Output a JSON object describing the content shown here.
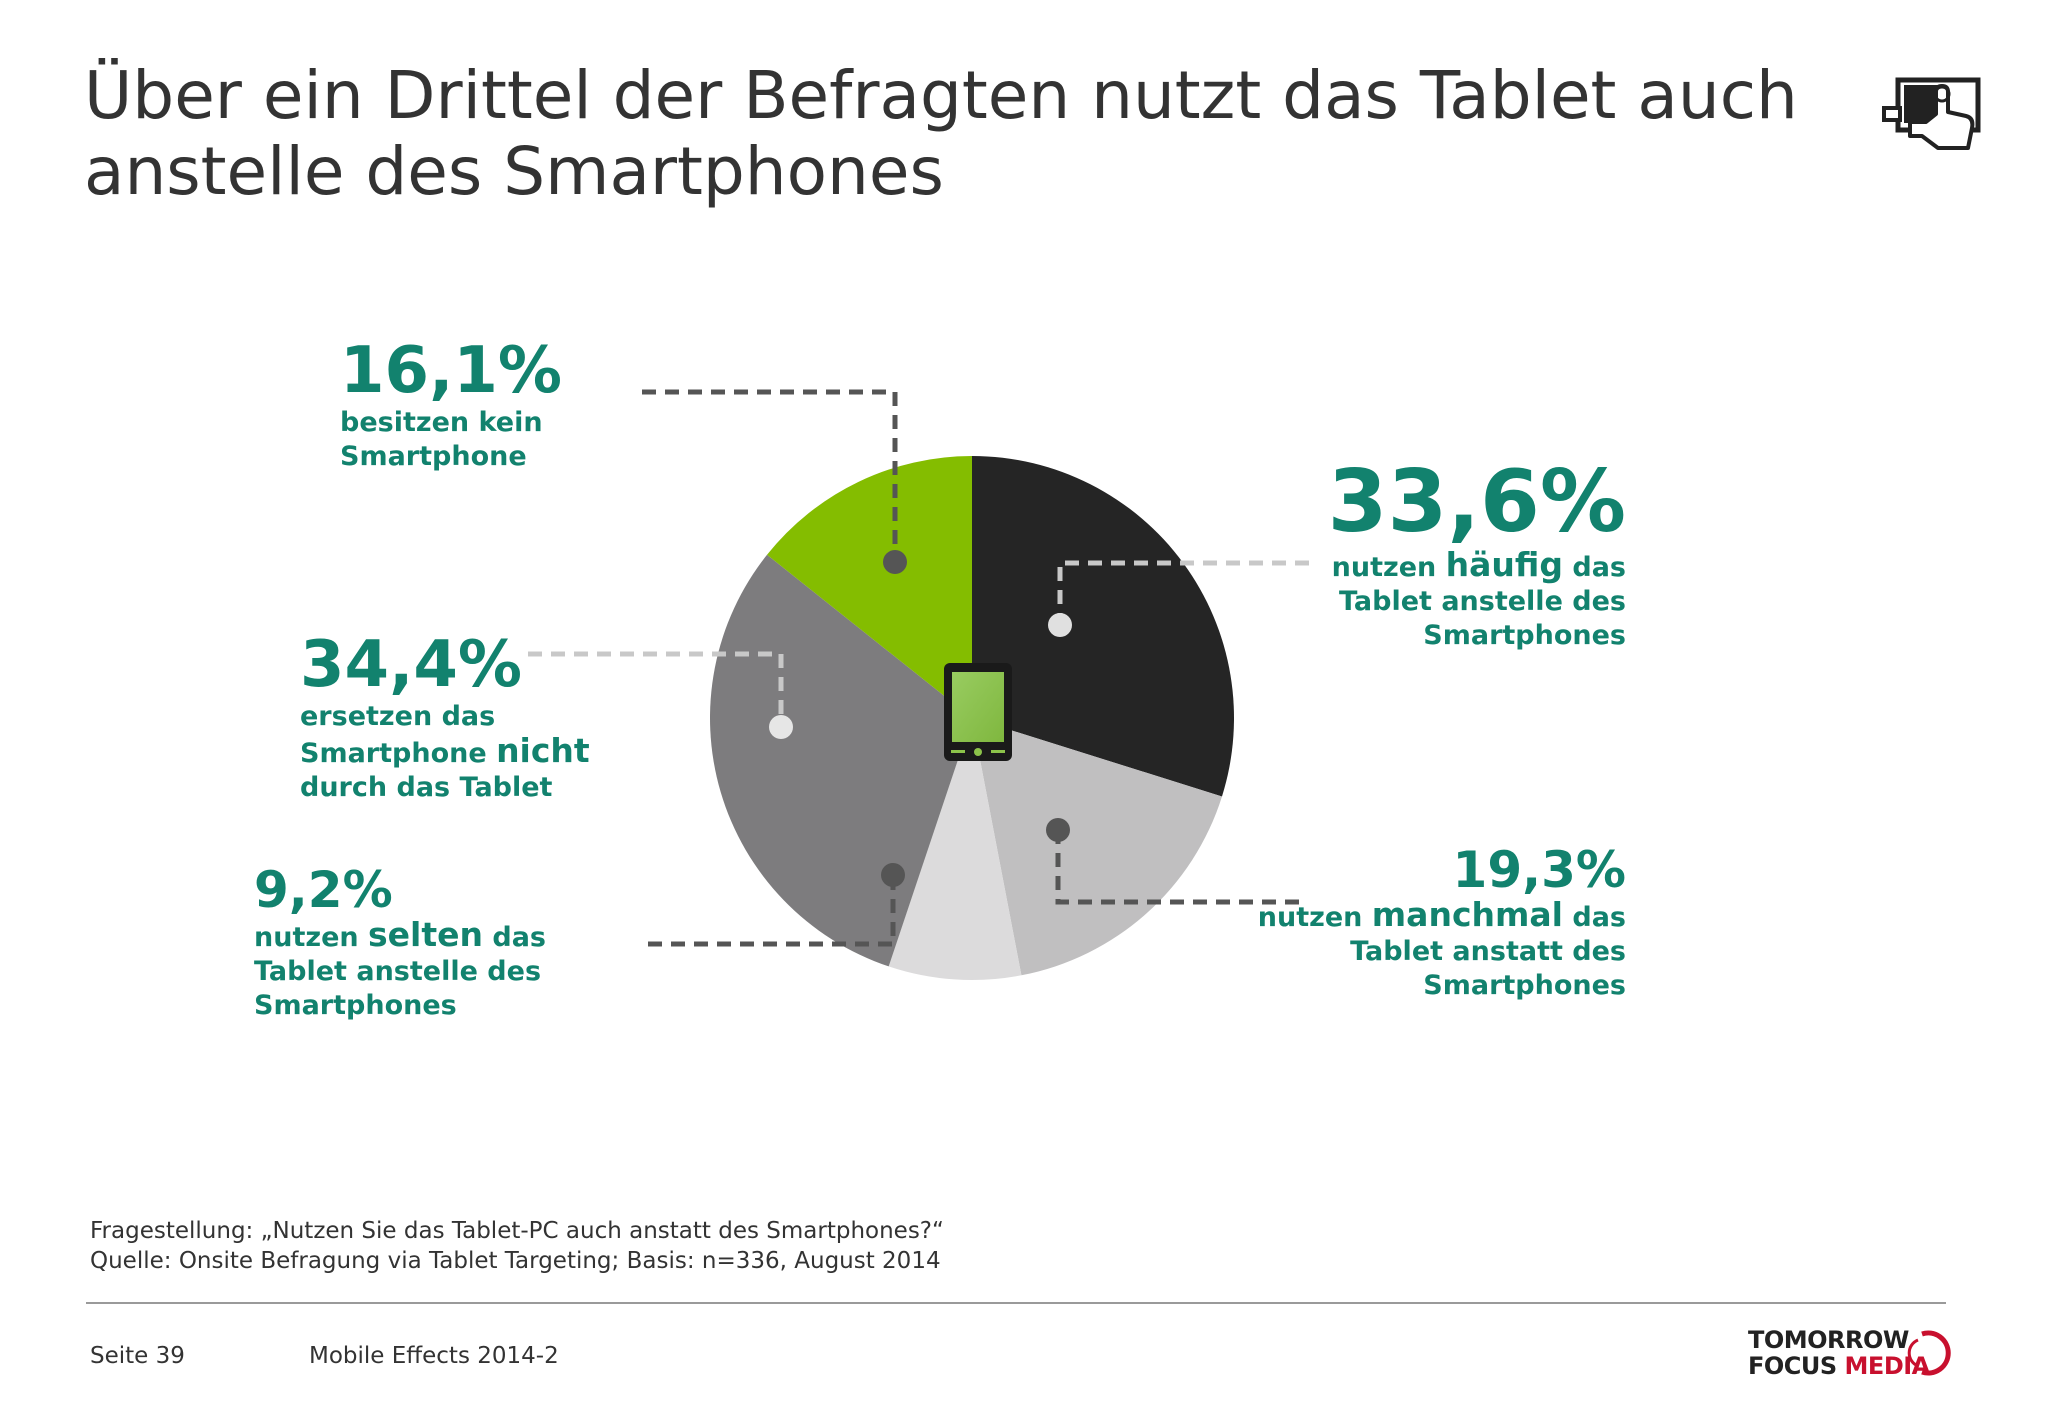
{
  "title": "Über ein Drittel der Befragten nutzt das Tablet auch anstelle des Smartphones",
  "colors": {
    "accent_text": "#12826e",
    "slice_haeufig": "#252525",
    "slice_manchmal": "#c0bfc0",
    "slice_selten": "#dcdbdc",
    "slice_nicht": "#7d7c7e",
    "slice_kein": "#84bd00",
    "leader_dark": "#555555",
    "leader_light": "#c8c8c8"
  },
  "labels": {
    "kein": {
      "pct": "16,1%",
      "line1": "besitzen kein",
      "line2": "Smartphone"
    },
    "haeufig": {
      "pct": "33,6%",
      "pre": "nutzen ",
      "emph": "häufig",
      "post": " das",
      "line2": "Tablet anstelle des",
      "line3": "Smartphones"
    },
    "nicht": {
      "pct": "34,4%",
      "line1": "ersetzen das",
      "pre": "Smartphone ",
      "emph": "nicht",
      "line3": "durch das Tablet"
    },
    "selten": {
      "pct": "9,2%",
      "pre": "nutzen ",
      "emph": "selten",
      "post": " das",
      "line2": "Tablet anstelle des",
      "line3": "Smartphones"
    },
    "manchmal": {
      "pct": "19,3%",
      "pre": "nutzen ",
      "emph": "manchmal",
      "post": " das",
      "line2": "Tablet anstatt des",
      "line3": "Smartphones"
    }
  },
  "chart_data": {
    "type": "pie",
    "title": "Über ein Drittel der Befragten nutzt das Tablet auch anstelle des Smartphones",
    "slices": [
      {
        "label": "nutzen häufig das Tablet anstelle des Smartphones",
        "value": 33.6,
        "color": "#252525"
      },
      {
        "label": "nutzen manchmal das Tablet anstatt des Smartphones",
        "value": 19.3,
        "color": "#c0bfc0"
      },
      {
        "label": "nutzen selten das Tablet anstelle des Smartphones",
        "value": 9.2,
        "color": "#dcdbdc"
      },
      {
        "label": "ersetzen das Smartphone nicht durch das Tablet",
        "value": 34.4,
        "color": "#7d7c7e"
      },
      {
        "label": "besitzen kein Smartphone",
        "value": 16.1,
        "color": "#84bd00"
      }
    ],
    "start": "top (12 o'clock)",
    "direction": "clockwise",
    "center_icon": "tablet-icon"
  },
  "footer": {
    "question": "Fragestellung: „Nutzen Sie das Tablet-PC auch anstatt des Smartphones?“",
    "source": "Quelle: Onsite Befragung via Tablet Targeting; Basis: n=336, August 2014",
    "page": "Seite 39",
    "document": "Mobile Effects 2014-2"
  },
  "logo": {
    "line1": "TOMORROW",
    "line2a": "FOCUS",
    "line2b": "MEDIA"
  },
  "icons": {
    "top_right": "tablet-touch-hand-icon",
    "center": "tablet-icon"
  }
}
